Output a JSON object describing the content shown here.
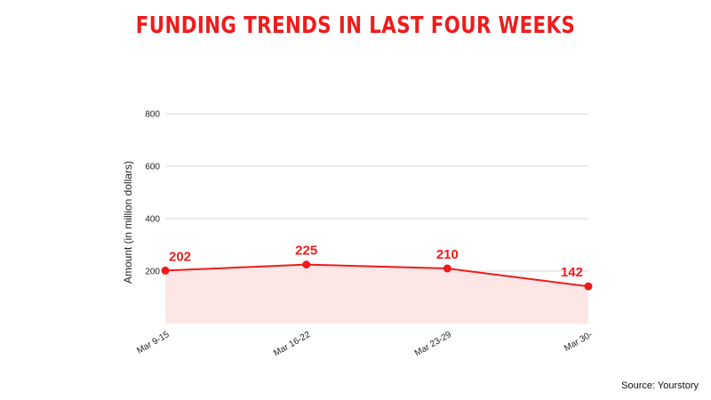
{
  "colors": {
    "accent": "#ee1c1c",
    "fill": "#fde6e6",
    "grid": "#d9d9d9"
  },
  "chart_data": {
    "type": "line",
    "title": "FUNDING TRENDS IN LAST FOUR WEEKS",
    "xlabel": "",
    "ylabel": "Amount (in million dollars)",
    "categories": [
      "Mar 9-15",
      "Mar 16-22",
      "Mar 23-29",
      "Mar 30-"
    ],
    "series": [
      {
        "values": [
          202,
          225,
          210,
          142
        ]
      }
    ],
    "yticks": [
      200,
      400,
      600,
      800
    ],
    "ylim": [
      0,
      800
    ],
    "grid": true,
    "area_fill": true,
    "source": "Source: Yourstory"
  }
}
